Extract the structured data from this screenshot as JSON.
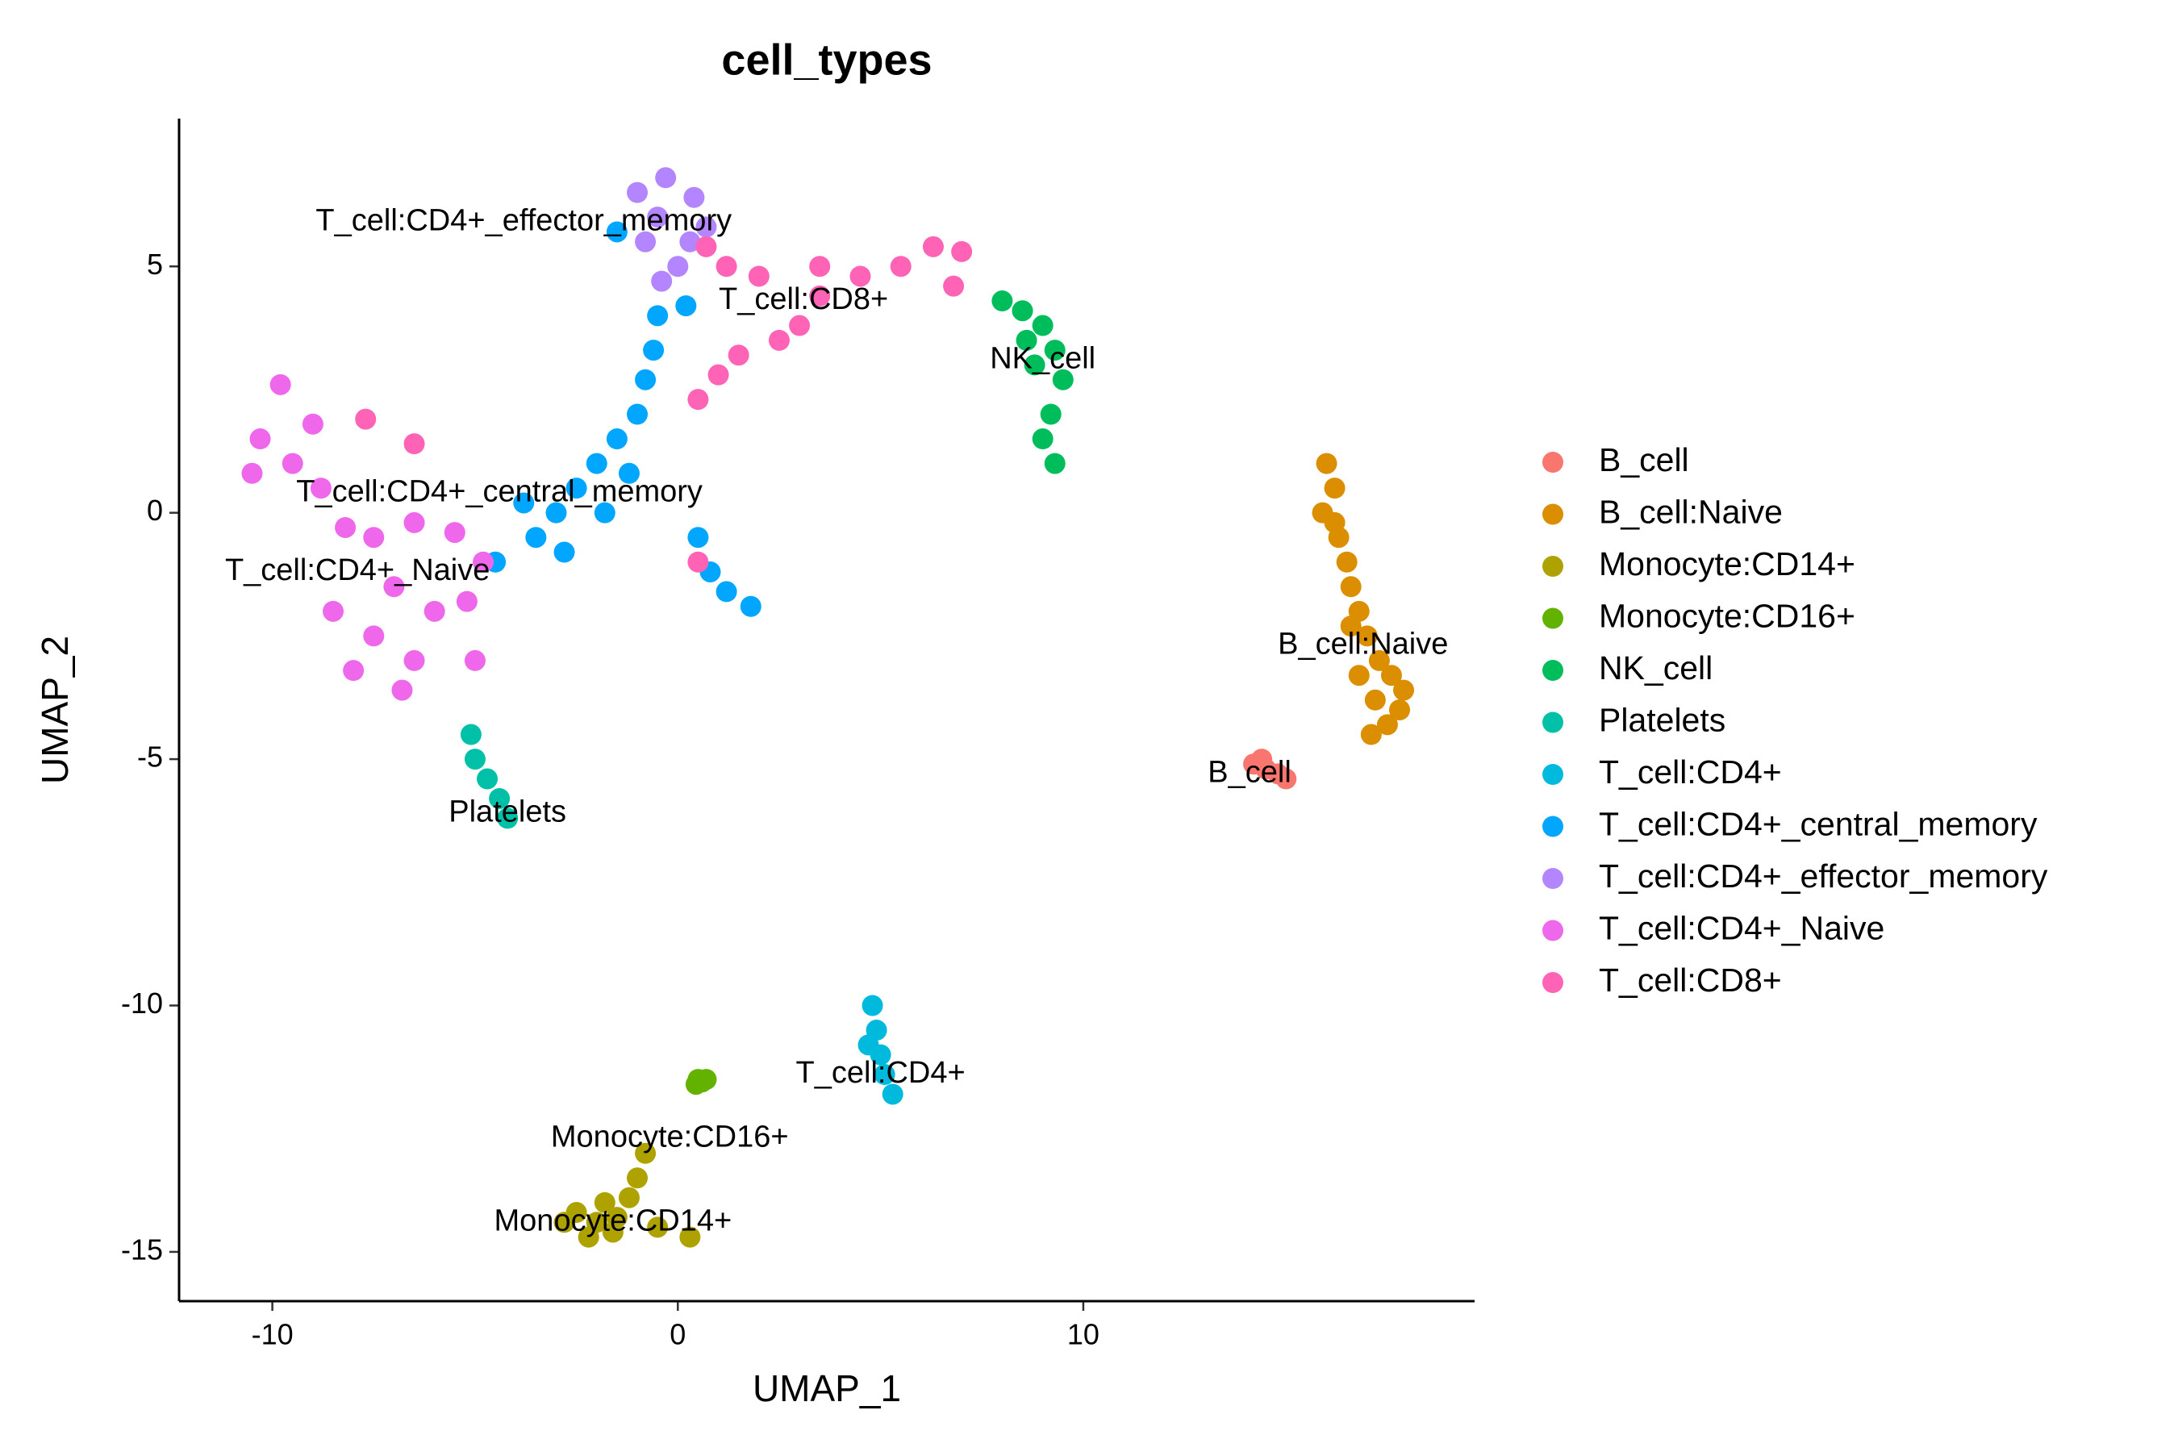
{
  "chart_data": {
    "type": "scatter",
    "title": "cell_types",
    "x_label": "UMAP_1",
    "y_label": "UMAP_2",
    "xlim": [
      -12.3,
      19.65
    ],
    "ylim": [
      -16,
      8
    ],
    "xticks": [
      -10,
      0,
      10
    ],
    "yticks": [
      -15,
      -10,
      -5,
      0,
      5
    ],
    "grid": false,
    "legend": "right",
    "series": [
      {
        "name": "B_cell",
        "color": "#F8766D",
        "x": [
          14.2,
          14.5,
          14.8,
          15.0,
          14.4
        ],
        "y": [
          -5.1,
          -5.2,
          -5.3,
          -5.4,
          -5.0
        ]
      },
      {
        "name": "B_cell:Naive",
        "color": "#DB8E00",
        "x": [
          16.0,
          16.2,
          15.9,
          16.3,
          16.5,
          16.6,
          16.8,
          17.0,
          17.3,
          17.6,
          17.9,
          17.2,
          17.8,
          17.5,
          17.1,
          16.8,
          16.2,
          16.6
        ],
        "y": [
          1.0,
          0.5,
          0,
          -0.5,
          -1.0,
          -1.5,
          -2.0,
          -2.5,
          -3.0,
          -3.3,
          -3.6,
          -3.8,
          -4.0,
          -4.3,
          -4.5,
          -3.3,
          -0.2,
          -2.3
        ]
      },
      {
        "name": "Monocyte:CD14+",
        "color": "#AEA200",
        "x": [
          -2.5,
          -2.0,
          -1.5,
          -2.2,
          -1.8,
          -1.2,
          -1.0,
          -0.8,
          -2.8,
          -1.6,
          -0.5,
          0.3
        ],
        "y": [
          -14.2,
          -14.4,
          -14.3,
          -14.7,
          -14.0,
          -13.9,
          -13.5,
          -13.0,
          -14.4,
          -14.6,
          -14.5,
          -14.7
        ]
      },
      {
        "name": "Monocyte:CD16+",
        "color": "#64B200",
        "x": [
          0.5,
          0.6,
          0.45,
          0.7
        ],
        "y": [
          -11.5,
          -11.55,
          -11.6,
          -11.5
        ]
      },
      {
        "name": "NK_cell",
        "color": "#00BD5C",
        "x": [
          8.0,
          8.5,
          9.0,
          9.3,
          8.8,
          9.5,
          9.2,
          9.0,
          9.3,
          8.6
        ],
        "y": [
          4.3,
          4.1,
          3.8,
          3.3,
          3.0,
          2.7,
          2.0,
          1.5,
          1.0,
          3.5
        ]
      },
      {
        "name": "Platelets",
        "color": "#00C1A7",
        "x": [
          -5.1,
          -5.0,
          -4.7,
          -4.4,
          -4.2
        ],
        "y": [
          -4.5,
          -5.0,
          -5.4,
          -5.8,
          -6.2
        ]
      },
      {
        "name": "T_cell:CD4+",
        "color": "#00BADE",
        "x": [
          4.8,
          4.9,
          5.0,
          5.1,
          5.3,
          4.7
        ],
        "y": [
          -10.0,
          -10.5,
          -11.0,
          -11.4,
          -11.8,
          -10.8
        ]
      },
      {
        "name": "T_cell:CD4+_central_memory",
        "color": "#00A6FF",
        "x": [
          -4.5,
          -3.5,
          -3,
          -2.5,
          -2,
          -1.5,
          -1,
          -0.8,
          -0.6,
          -0.5,
          -3.8,
          -2.8,
          -1.8,
          -1.2,
          0.5,
          0.8,
          1.2,
          1.8,
          -1.5,
          0.2
        ],
        "y": [
          -1.0,
          -0.5,
          0,
          0.5,
          1,
          1.5,
          2,
          2.7,
          3.3,
          4.0,
          0.2,
          -0.8,
          0.0,
          0.8,
          -0.5,
          -1.2,
          -1.6,
          -1.9,
          5.7,
          4.2
        ]
      },
      {
        "name": "T_cell:CD4+_effector_memory",
        "color": "#B385FF",
        "x": [
          -1.0,
          -0.3,
          0.4,
          0.7,
          -0.8,
          0,
          -0.5,
          0.3,
          -0.4
        ],
        "y": [
          6.5,
          6.8,
          6.4,
          5.8,
          5.5,
          5.0,
          6.0,
          5.5,
          4.7
        ]
      },
      {
        "name": "T_cell:CD4+_Naive",
        "color": "#EF67EB",
        "x": [
          -10.3,
          -9.8,
          -9.5,
          -10.5,
          -9.0,
          -8.8,
          -8.2,
          -7.5,
          -6.5,
          -5.5,
          -8.5,
          -7.5,
          -6.5,
          -6,
          -7,
          -5.2,
          -8.0,
          -6.8,
          -5.0,
          -4.8
        ],
        "y": [
          1.5,
          2.6,
          1.0,
          0.8,
          1.8,
          0.5,
          -0.3,
          -0.5,
          -0.2,
          -0.4,
          -2.0,
          -2.5,
          -3.0,
          -2,
          -1.5,
          -1.8,
          -3.2,
          -3.6,
          -3.0,
          -1.0
        ]
      },
      {
        "name": "T_cell:CD8+",
        "color": "#FF63B6",
        "x": [
          0.5,
          1,
          1.5,
          2.5,
          3,
          3.5,
          4.5,
          5.5,
          6.3,
          7,
          6.8,
          2,
          1.2,
          0.7,
          3.5,
          -7.7,
          -6.5,
          0.5
        ],
        "y": [
          2.3,
          2.8,
          3.2,
          3.5,
          3.8,
          4.4,
          4.8,
          5.0,
          5.4,
          5.3,
          4.6,
          4.8,
          5.0,
          5.4,
          5.0,
          1.9,
          1.4,
          -1.0
        ]
      }
    ],
    "annotations": [
      {
        "text": "T_cell:CD4+_effector_memory",
        "x": -3.8,
        "y": 5.9
      },
      {
        "text": "T_cell:CD8+",
        "x": 3.1,
        "y": 4.3
      },
      {
        "text": "NK_cell",
        "x": 9.0,
        "y": 3.1
      },
      {
        "text": "T_cell:CD4+_central_memory",
        "x": -4.4,
        "y": 0.4
      },
      {
        "text": "T_cell:CD4+_Naive",
        "x": -7.9,
        "y": -1.2
      },
      {
        "text": "B_cell:Naive",
        "x": 16.9,
        "y": -2.7
      },
      {
        "text": "B_cell",
        "x": 14.1,
        "y": -5.3
      },
      {
        "text": "Platelets",
        "x": -4.2,
        "y": -6.1
      },
      {
        "text": "T_cell:CD4+",
        "x": 5.0,
        "y": -11.4
      },
      {
        "text": "Monocyte:CD16+",
        "x": -0.2,
        "y": -12.7
      },
      {
        "text": "Monocyte:CD14+",
        "x": -1.6,
        "y": -14.4
      }
    ]
  }
}
